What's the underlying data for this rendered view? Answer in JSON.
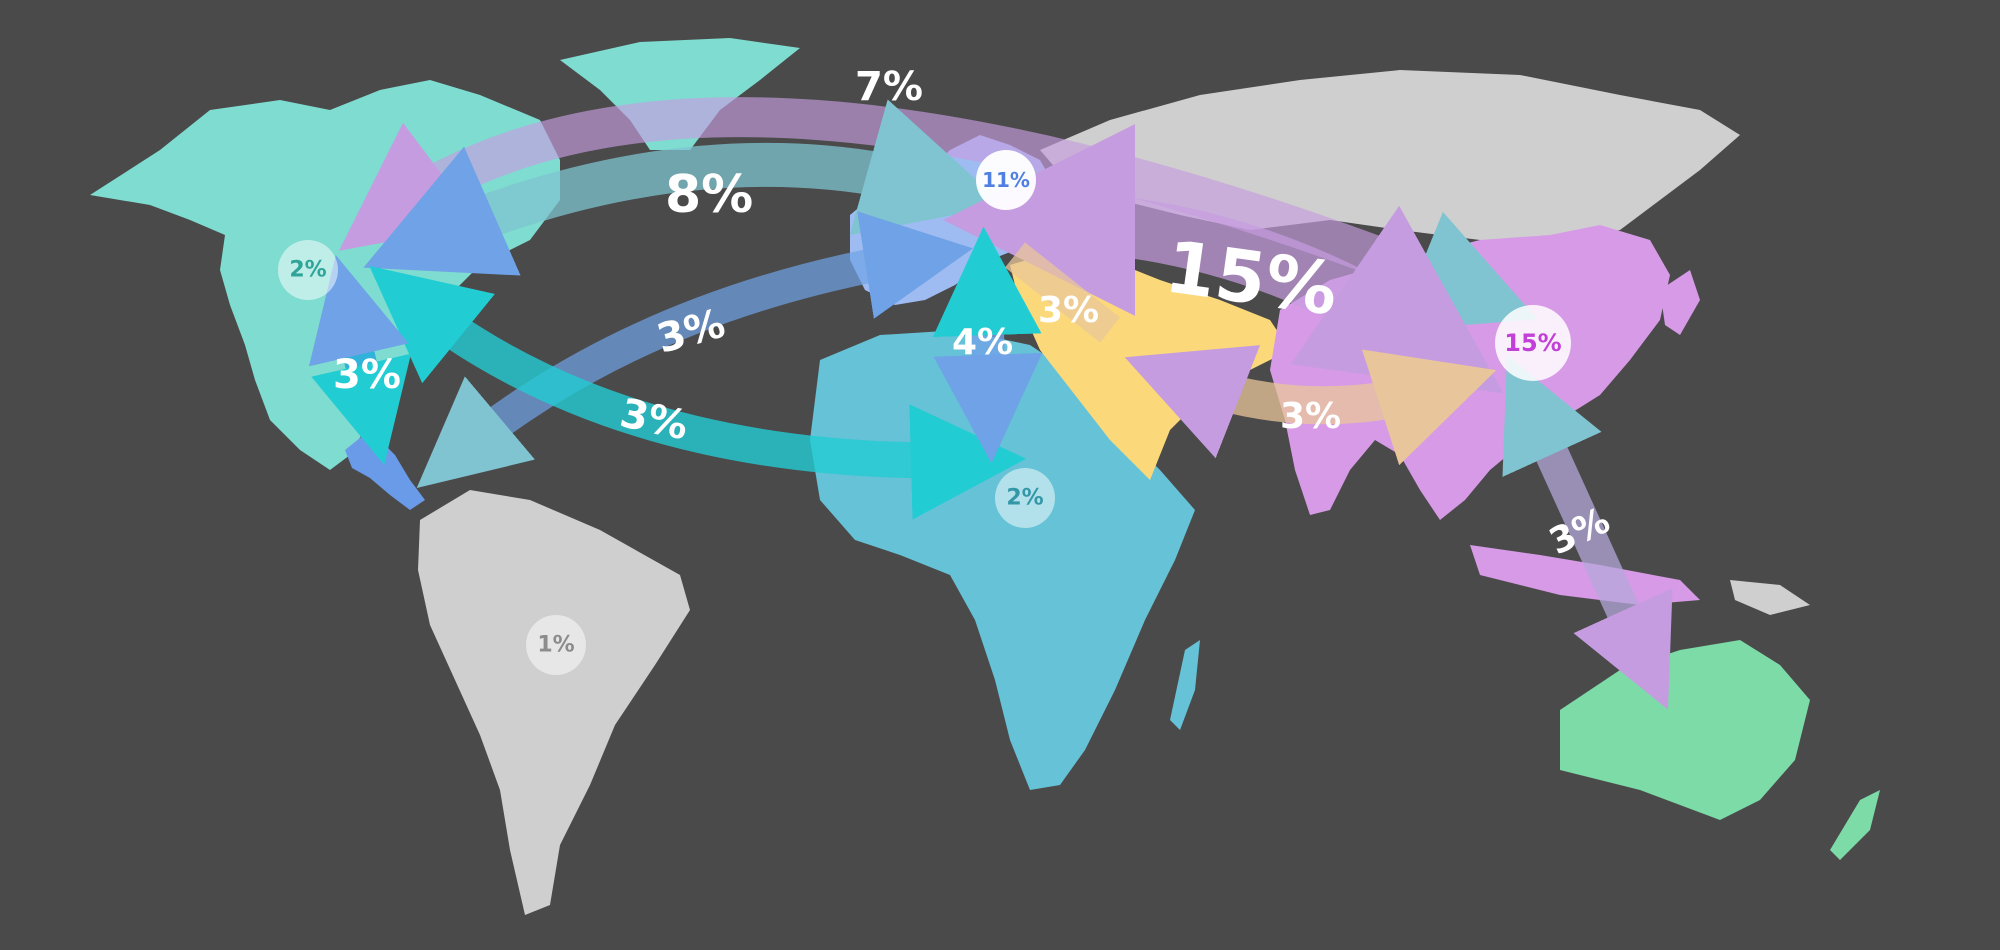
{
  "colors": {
    "background": "#4a4a4a",
    "north_america": "#7fdcd0",
    "central_america": "#6a9be8",
    "south_america": "#cfcfcf",
    "europe": "#9fbcf2",
    "africa": "#66c2d6",
    "middle_east": "#fbd97a",
    "russia": "#cfcfcf",
    "china_south_asia": "#d79ae6",
    "australia": "#7ddba8",
    "label_na": "#2fa59a",
    "label_sa": "#8c8c8c",
    "label_eu": "#4f7fe0",
    "label_af": "#3397a8",
    "label_cn": "#c23fd8"
  },
  "regions": [
    {
      "id": "north-america",
      "label": "2%"
    },
    {
      "id": "south-america",
      "label": "1%"
    },
    {
      "id": "europe",
      "label": "11%"
    },
    {
      "id": "africa",
      "label": "2%"
    },
    {
      "id": "china",
      "label": "15%"
    }
  ],
  "flows": [
    {
      "id": "europe-china",
      "label": "15%"
    },
    {
      "id": "europe-north-america",
      "label": "8%"
    },
    {
      "id": "north-america-china",
      "label": "7%"
    },
    {
      "id": "europe-central-america",
      "label": "3%"
    },
    {
      "id": "north-america-africa",
      "label": "3%"
    },
    {
      "id": "north-america-central-america",
      "label": "3%"
    },
    {
      "id": "europe-africa",
      "label": "4%"
    },
    {
      "id": "europe-middle-east",
      "label": "3%"
    },
    {
      "id": "middle-east-china",
      "label": "3%"
    },
    {
      "id": "china-australia",
      "label": "3%"
    }
  ]
}
